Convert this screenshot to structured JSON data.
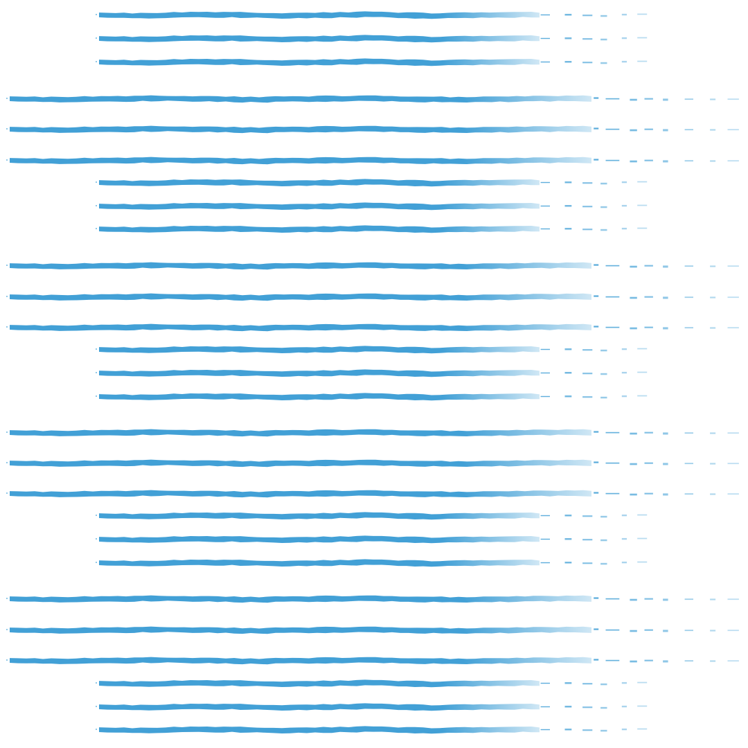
{
  "pattern": {
    "stroke_color": "#42a0d6",
    "background_color": "#ffffff"
  }
}
